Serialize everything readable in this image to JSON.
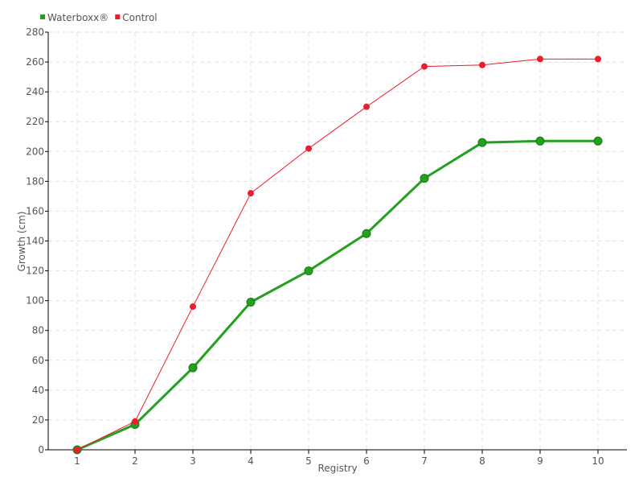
{
  "chart_data": {
    "type": "line",
    "title": "",
    "xlabel": "Registry",
    "ylabel": "Growth (cm)",
    "categories": [
      "1",
      "2",
      "3",
      "4",
      "5",
      "6",
      "7",
      "8",
      "9",
      "10"
    ],
    "ylim": [
      0,
      280
    ],
    "yticks": [
      0,
      20,
      40,
      60,
      80,
      100,
      120,
      140,
      160,
      180,
      200,
      220,
      240,
      260,
      280
    ],
    "grid": true,
    "legend_placement": "top-left",
    "series": [
      {
        "name": "Waterboxx®",
        "color": "#22a01e",
        "values": [
          0,
          17,
          55,
          99,
          120,
          145,
          182,
          206,
          207,
          207
        ]
      },
      {
        "name": "Control",
        "color": "#ee1c2e",
        "values": [
          0,
          19,
          96,
          172,
          202,
          230,
          257,
          258,
          262,
          262
        ]
      }
    ]
  }
}
